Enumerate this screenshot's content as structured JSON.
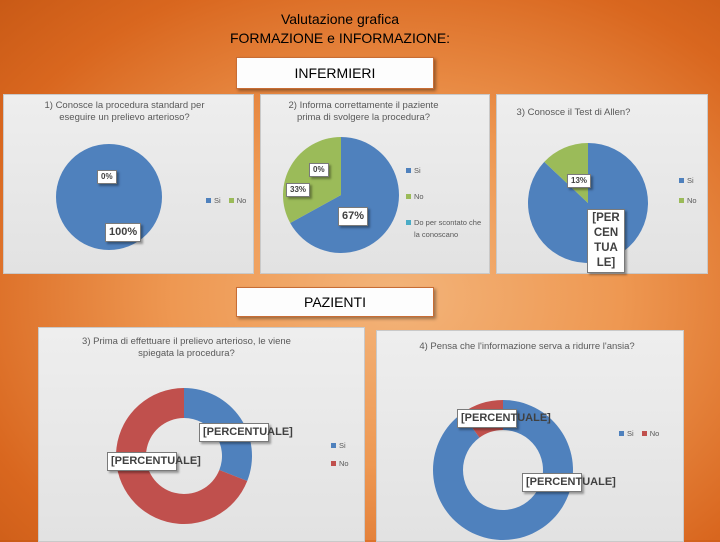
{
  "header": {
    "title_line1": "Valutazione grafica",
    "title_line2": "FORMAZIONE e INFORMAZIONE:"
  },
  "sections": {
    "nurses": "INFERMIERI",
    "patients": "PAZIENTI"
  },
  "colors": {
    "blue": "#4f81bd",
    "green": "#9bbb59",
    "red": "#c0504d",
    "teal": "#4bacc6"
  },
  "chart_data": [
    {
      "type": "pie",
      "title": "1) Conosce la procedura standard per eseguire un prelievo arterioso?",
      "categories": [
        "Si",
        "No"
      ],
      "values": [
        100,
        0
      ],
      "data_labels": [
        "100%",
        "0%"
      ],
      "legend": "right"
    },
    {
      "type": "pie",
      "title": "2) Informa correttamente il paziente prima di svolgere la procedura?",
      "categories": [
        "Si",
        "No",
        "Do per scontato che la conoscano"
      ],
      "values": [
        67,
        33,
        0
      ],
      "data_labels": [
        "67%",
        "33%",
        "0%"
      ],
      "legend": "right"
    },
    {
      "type": "pie",
      "title": "3) Conosce il Test di Allen?",
      "categories": [
        "Si",
        "No"
      ],
      "values": [
        87,
        13
      ],
      "data_labels": [
        "[PERCENTUALE]",
        "13%"
      ],
      "legend": "right"
    },
    {
      "type": "pie",
      "variant": "doughnut",
      "title": "3) Prima di effettuare il prelievo arterioso, le viene spiegata la procedura?",
      "categories": [
        "Si",
        "No"
      ],
      "values": [
        31,
        69
      ],
      "data_labels": [
        "[PERCENTUALE]",
        "[PERCENTUALE]"
      ],
      "legend": "right"
    },
    {
      "type": "pie",
      "variant": "doughnut",
      "title": "4) Pensa che l'informazione serva a ridurre l'ansia?",
      "categories": [
        "Si",
        "No"
      ],
      "values": [
        90,
        10
      ],
      "data_labels": [
        "[PERCENTUALE]",
        "[PERCENTUALE]"
      ],
      "legend": "right"
    }
  ]
}
